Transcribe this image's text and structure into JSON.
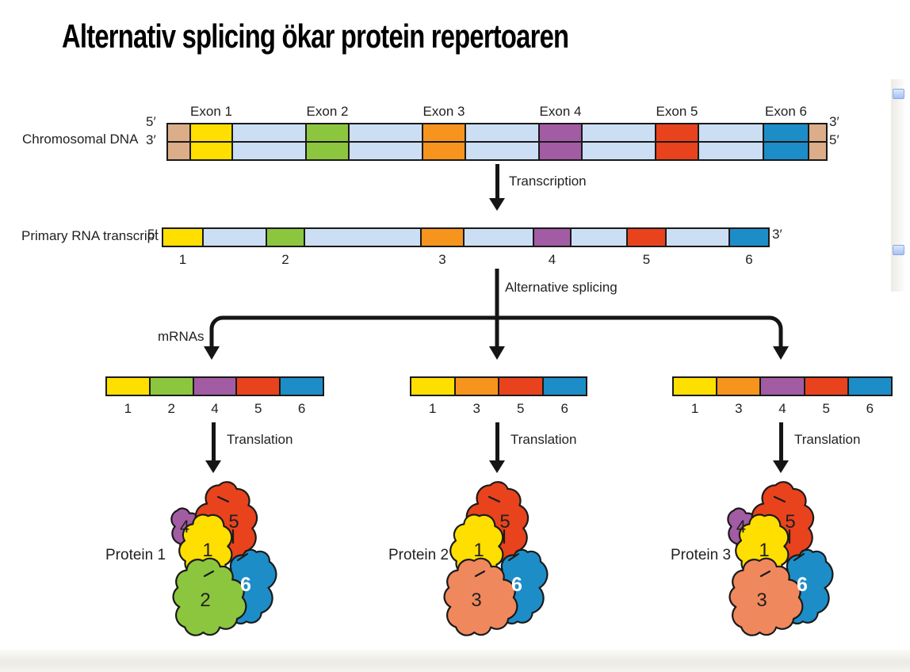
{
  "title": "Alternativ splicing ökar protein repertoaren",
  "palette": {
    "yellow": "#FFDF00",
    "green": "#8CC63F",
    "orange": "#F7941E",
    "purple": "#A25CA3",
    "red": "#E8431D",
    "blue": "#1D8DC8",
    "salmon": "#F0885E",
    "intron": "#CBDEF3",
    "tan": "#DBAD89",
    "outline": "#1A1A1A",
    "text": "#231F20"
  },
  "dna": {
    "label": "Chromosomal DNA",
    "left_top_end": "5′",
    "left_bottom_end": "3′",
    "right_top_end": "3′",
    "right_bottom_end": "5′",
    "segments": [
      {
        "kind": "cap",
        "color": "tan"
      },
      {
        "kind": "exon",
        "color": "yellow",
        "label": "Exon 1"
      },
      {
        "kind": "intron"
      },
      {
        "kind": "exon",
        "color": "green",
        "label": "Exon 2"
      },
      {
        "kind": "intron"
      },
      {
        "kind": "exon",
        "color": "orange",
        "label": "Exon 3"
      },
      {
        "kind": "intron"
      },
      {
        "kind": "exon",
        "color": "purple",
        "label": "Exon 4"
      },
      {
        "kind": "intron"
      },
      {
        "kind": "exon",
        "color": "red",
        "label": "Exon 5"
      },
      {
        "kind": "intron"
      },
      {
        "kind": "exon",
        "color": "blue",
        "label": "Exon 6"
      },
      {
        "kind": "cap",
        "color": "tan"
      }
    ]
  },
  "transcription": {
    "label": "Transcription",
    "icon": "down-arrow"
  },
  "rna": {
    "label": "Primary RNA transcript",
    "left_end": "5′",
    "right_end": "3′",
    "segments": [
      {
        "kind": "exon",
        "color": "yellow",
        "num": "1"
      },
      {
        "kind": "intron"
      },
      {
        "kind": "exon",
        "color": "green",
        "num": "2"
      },
      {
        "kind": "intron"
      },
      {
        "kind": "exon",
        "color": "orange",
        "num": "3"
      },
      {
        "kind": "intron"
      },
      {
        "kind": "exon",
        "color": "purple",
        "num": "4"
      },
      {
        "kind": "intron"
      },
      {
        "kind": "exon",
        "color": "red",
        "num": "5"
      },
      {
        "kind": "intron"
      },
      {
        "kind": "exon",
        "color": "blue",
        "num": "6"
      }
    ]
  },
  "splicing": {
    "label": "Alternative splicing",
    "mrnas_label": "mRNAs",
    "icon": "three-branch-down-arrows"
  },
  "mrnas": [
    {
      "exons": [
        {
          "num": "1",
          "color": "yellow"
        },
        {
          "num": "2",
          "color": "green"
        },
        {
          "num": "4",
          "color": "purple"
        },
        {
          "num": "5",
          "color": "red"
        },
        {
          "num": "6",
          "color": "blue"
        }
      ]
    },
    {
      "exons": [
        {
          "num": "1",
          "color": "yellow"
        },
        {
          "num": "3",
          "color": "orange"
        },
        {
          "num": "5",
          "color": "red"
        },
        {
          "num": "6",
          "color": "blue"
        }
      ]
    },
    {
      "exons": [
        {
          "num": "1",
          "color": "yellow"
        },
        {
          "num": "3",
          "color": "orange"
        },
        {
          "num": "4",
          "color": "purple"
        },
        {
          "num": "5",
          "color": "red"
        },
        {
          "num": "6",
          "color": "blue"
        }
      ]
    }
  ],
  "translation": {
    "label": "Translation",
    "icon": "down-arrow"
  },
  "proteins": [
    {
      "label": "Protein 1",
      "domains": [
        {
          "num": "4",
          "color": "purple"
        },
        {
          "num": "5",
          "color": "red"
        },
        {
          "num": "1",
          "color": "yellow"
        },
        {
          "num": "6",
          "color": "blue"
        },
        {
          "num": "2",
          "color": "green"
        }
      ]
    },
    {
      "label": "Protein 2",
      "domains": [
        {
          "num": "5",
          "color": "red"
        },
        {
          "num": "1",
          "color": "yellow"
        },
        {
          "num": "6",
          "color": "blue"
        },
        {
          "num": "3",
          "color": "salmon"
        }
      ]
    },
    {
      "label": "Protein 3",
      "domains": [
        {
          "num": "4",
          "color": "purple"
        },
        {
          "num": "5",
          "color": "red"
        },
        {
          "num": "1",
          "color": "yellow"
        },
        {
          "num": "6",
          "color": "blue"
        },
        {
          "num": "3",
          "color": "salmon"
        }
      ]
    }
  ],
  "side_ui": {
    "top_button_icon": "scroll-button",
    "bottom_button_icon": "scroll-button"
  }
}
